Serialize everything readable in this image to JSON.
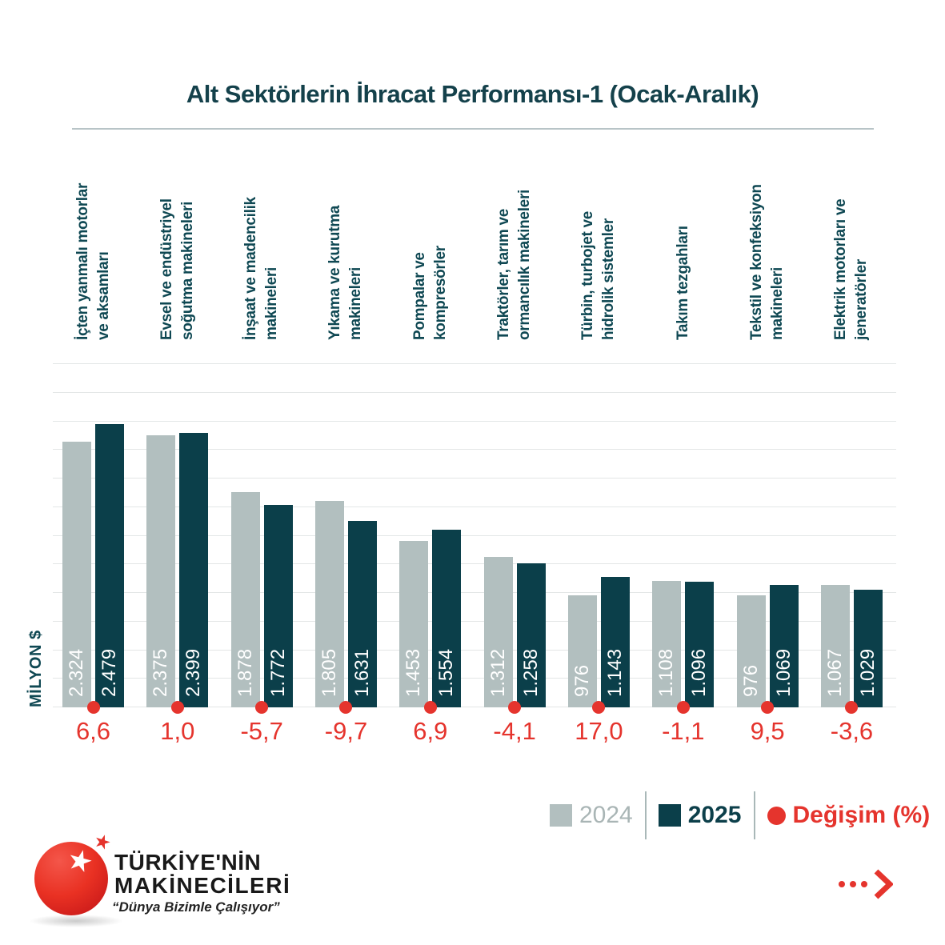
{
  "title": "Alt Sektörlerin İhracat Performansı-1 (Ocak-Aralık)",
  "chart_data": {
    "type": "bar",
    "title": "Alt Sektörlerin İhracat Performansı-1 (Ocak-Aralık)",
    "ylabel": "MİLYON $",
    "ylim": [
      0,
      3000
    ],
    "grid_step": 250,
    "grid": true,
    "categories": [
      "İçten yanmalı motorlar\nve aksamları",
      "Evsel ve endüstriyel\nsoğutma makineleri",
      "İnşaat ve madencilik\nmakineleri",
      "Yıkama ve kurutma\nmakineleri",
      "Pompalar ve\nkompresörler",
      "Traktörler, tarım ve\normancılık makineleri",
      "Türbin, turbojet ve\nhidrolik sistemler",
      "Takım tezgahları",
      "Tekstil ve konfeksiyon\nmakineleri",
      "Elektrik motorları ve\njeneratörler"
    ],
    "series": [
      {
        "name": "2024",
        "color": "#b2bfbf",
        "values": [
          2324,
          2375,
          1878,
          1805,
          1453,
          1312,
          976,
          1108,
          976,
          1067
        ],
        "display": [
          "2.324",
          "2.375",
          "1.878",
          "1.805",
          "1.453",
          "1.312",
          "976",
          "1.108",
          "976",
          "1.067"
        ]
      },
      {
        "name": "2025",
        "color": "#0b3f4a",
        "values": [
          2479,
          2399,
          1772,
          1631,
          1554,
          1258,
          1143,
          1096,
          1069,
          1029
        ],
        "display": [
          "2.479",
          "2.399",
          "1.772",
          "1.631",
          "1.554",
          "1.258",
          "1.143",
          "1.096",
          "1.069",
          "1.029"
        ]
      }
    ],
    "change_pct": [
      "6,6",
      "1,0",
      "-5,7",
      "-9,7",
      "6,9",
      "-4,1",
      "17,0",
      "-1,1",
      "9,5",
      "-3,6"
    ],
    "legend_position": "bottom-right"
  },
  "legend": [
    {
      "label": "2024",
      "marker": "square",
      "color": "#b2bfbf",
      "text_color": "#a9b5b5",
      "bold": false
    },
    {
      "label": "2025",
      "marker": "square",
      "color": "#0b3f4a",
      "text_color": "#0c3f4a",
      "bold": true
    },
    {
      "label": "Değişim (%)",
      "marker": "circle",
      "color": "#e5342d",
      "text_color": "#e5342d",
      "bold": true
    }
  ],
  "footer": {
    "logo": {
      "line1": "TÜRKİYE'NİN",
      "line2": "MAKİNECİLERİ",
      "tagline": "“Dünya Bizimle Çalışıyor”"
    },
    "more_icon": "ellipsis-chevron-right"
  },
  "colors": {
    "accent_red": "#e5342d",
    "dark_teal": "#0b3f4a",
    "light_gray_bar": "#b2bfbf",
    "title_text": "#14414b",
    "gridline": "#e3e6e6"
  }
}
